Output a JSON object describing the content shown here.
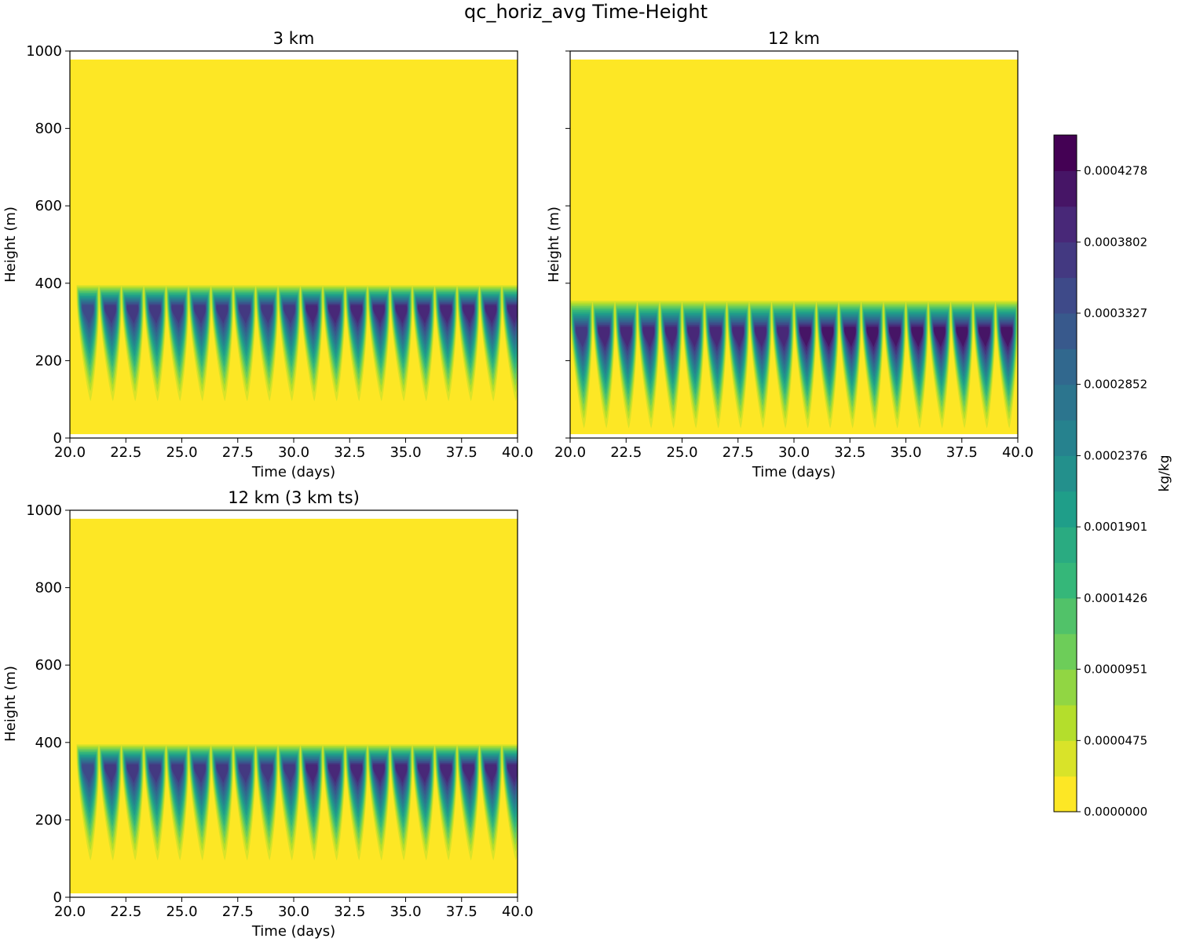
{
  "chart_data": {
    "type": "heatmap",
    "title": "qc_horiz_avg Time-Height",
    "panels": [
      {
        "title": "3 km",
        "xlabel": "Time (days)",
        "ylabel": "Height (m)",
        "xlim": [
          20.0,
          40.0
        ],
        "ylim": [
          0,
          1000
        ],
        "xticks": [
          "20.0",
          "22.5",
          "25.0",
          "27.5",
          "30.0",
          "32.5",
          "35.0",
          "37.5",
          "40.0"
        ],
        "yticks": [
          "0",
          "200",
          "400",
          "600",
          "800",
          "1000"
        ],
        "show_ytick_labels": true,
        "domain_top_m": 978,
        "domain_bottom_m": 10,
        "cloud_top_m": 395,
        "cloud_core_m": 330,
        "cloud_base_min_m": 95,
        "diurnal_cycle_starts_days": [
          20.3,
          21.3,
          22.3,
          23.3,
          24.3,
          25.3,
          26.3,
          27.3,
          28.3,
          29.3,
          30.3,
          31.3,
          32.3,
          33.3,
          34.3,
          35.3,
          36.3,
          37.3,
          38.3,
          39.3
        ],
        "cycle_peak_qc_kg_kg": [
          0.00036,
          0.00037,
          0.00037,
          0.00037,
          0.00038,
          0.00038,
          0.00038,
          0.00038,
          0.00038,
          0.00038,
          0.00039,
          0.00039,
          0.00039,
          0.00039,
          0.00039,
          0.0004,
          0.0004,
          0.0004,
          0.0004,
          0.00041
        ]
      },
      {
        "title": "12 km",
        "xlabel": "Time (days)",
        "ylabel": "Height (m)",
        "xlim": [
          20.0,
          40.0
        ],
        "ylim": [
          0,
          1000
        ],
        "xticks": [
          "20.0",
          "22.5",
          "25.0",
          "27.5",
          "30.0",
          "32.5",
          "35.0",
          "37.5",
          "40.0"
        ],
        "yticks": [
          "0",
          "200",
          "400",
          "600",
          "800",
          "1000"
        ],
        "show_ytick_labels": false,
        "domain_top_m": 978,
        "domain_bottom_m": 10,
        "cloud_top_m": 355,
        "cloud_core_m": 270,
        "cloud_base_min_m": 25,
        "diurnal_cycle_starts_days": [
          20.0,
          21.0,
          22.0,
          23.0,
          24.0,
          25.0,
          26.0,
          27.0,
          28.0,
          29.0,
          30.0,
          31.0,
          32.0,
          33.0,
          34.0,
          35.0,
          36.0,
          37.0,
          38.0,
          39.0
        ],
        "cycle_peak_qc_kg_kg": [
          0.00038,
          0.00039,
          0.00039,
          0.0004,
          0.0004,
          0.0004,
          0.00041,
          0.00041,
          0.00041,
          0.00041,
          0.00042,
          0.00042,
          0.00042,
          0.00042,
          0.00042,
          0.00042,
          0.00043,
          0.00043,
          0.00043,
          0.00043
        ]
      },
      {
        "title": "12 km (3 km ts)",
        "xlabel": "Time (days)",
        "ylabel": "Height (m)",
        "xlim": [
          20.0,
          40.0
        ],
        "ylim": [
          0,
          1000
        ],
        "xticks": [
          "20.0",
          "22.5",
          "25.0",
          "27.5",
          "30.0",
          "32.5",
          "35.0",
          "37.5",
          "40.0"
        ],
        "yticks": [
          "0",
          "200",
          "400",
          "600",
          "800",
          "1000"
        ],
        "show_ytick_labels": true,
        "domain_top_m": 978,
        "domain_bottom_m": 10,
        "cloud_top_m": 395,
        "cloud_core_m": 330,
        "cloud_base_min_m": 95,
        "diurnal_cycle_starts_days": [
          20.3,
          21.3,
          22.3,
          23.3,
          24.3,
          25.3,
          26.3,
          27.3,
          28.3,
          29.3,
          30.3,
          31.3,
          32.3,
          33.3,
          34.3,
          35.3,
          36.3,
          37.3,
          38.3,
          39.3
        ],
        "cycle_peak_qc_kg_kg": [
          0.00036,
          0.00037,
          0.00037,
          0.00037,
          0.00038,
          0.00038,
          0.00038,
          0.00038,
          0.00038,
          0.00038,
          0.00039,
          0.00039,
          0.00039,
          0.00039,
          0.00039,
          0.0004,
          0.0004,
          0.0004,
          0.0004,
          0.00041
        ]
      }
    ],
    "colorbar": {
      "label": "kg/kg",
      "colormap": "viridis_r",
      "vmin": 0.0,
      "vmax": 0.0004516,
      "n_levels": 19,
      "ticks": [
        "0.0000000",
        "0.0000475",
        "0.0000951",
        "0.0001426",
        "0.0001901",
        "0.0002376",
        "0.0002852",
        "0.0003327",
        "0.0003802",
        "0.0004278"
      ],
      "tick_values": [
        0.0,
        4.75e-05,
        9.51e-05,
        0.0001426,
        0.0001901,
        0.0002376,
        0.0002852,
        0.0003327,
        0.0003802,
        0.0004278
      ]
    }
  }
}
